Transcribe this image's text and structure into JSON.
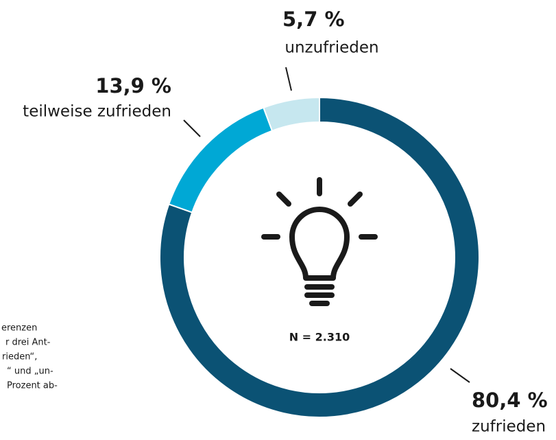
{
  "chart_data": {
    "type": "donut",
    "categories": [
      "zufrieden",
      "teilweise zufrieden",
      "unzufrieden"
    ],
    "values": [
      80.4,
      13.9,
      5.7
    ],
    "value_labels": [
      "80,4 %",
      "13,9 %",
      "5,7 %"
    ],
    "colors": [
      "#0b5274",
      "#00a8d5",
      "#c6e7ef"
    ],
    "center_label": "N = 2.310"
  },
  "footnote": {
    "lines": [
      "erenzen",
      "r drei Ant-",
      "rieden“,",
      "“ und „un-",
      "Prozent ab-"
    ]
  }
}
